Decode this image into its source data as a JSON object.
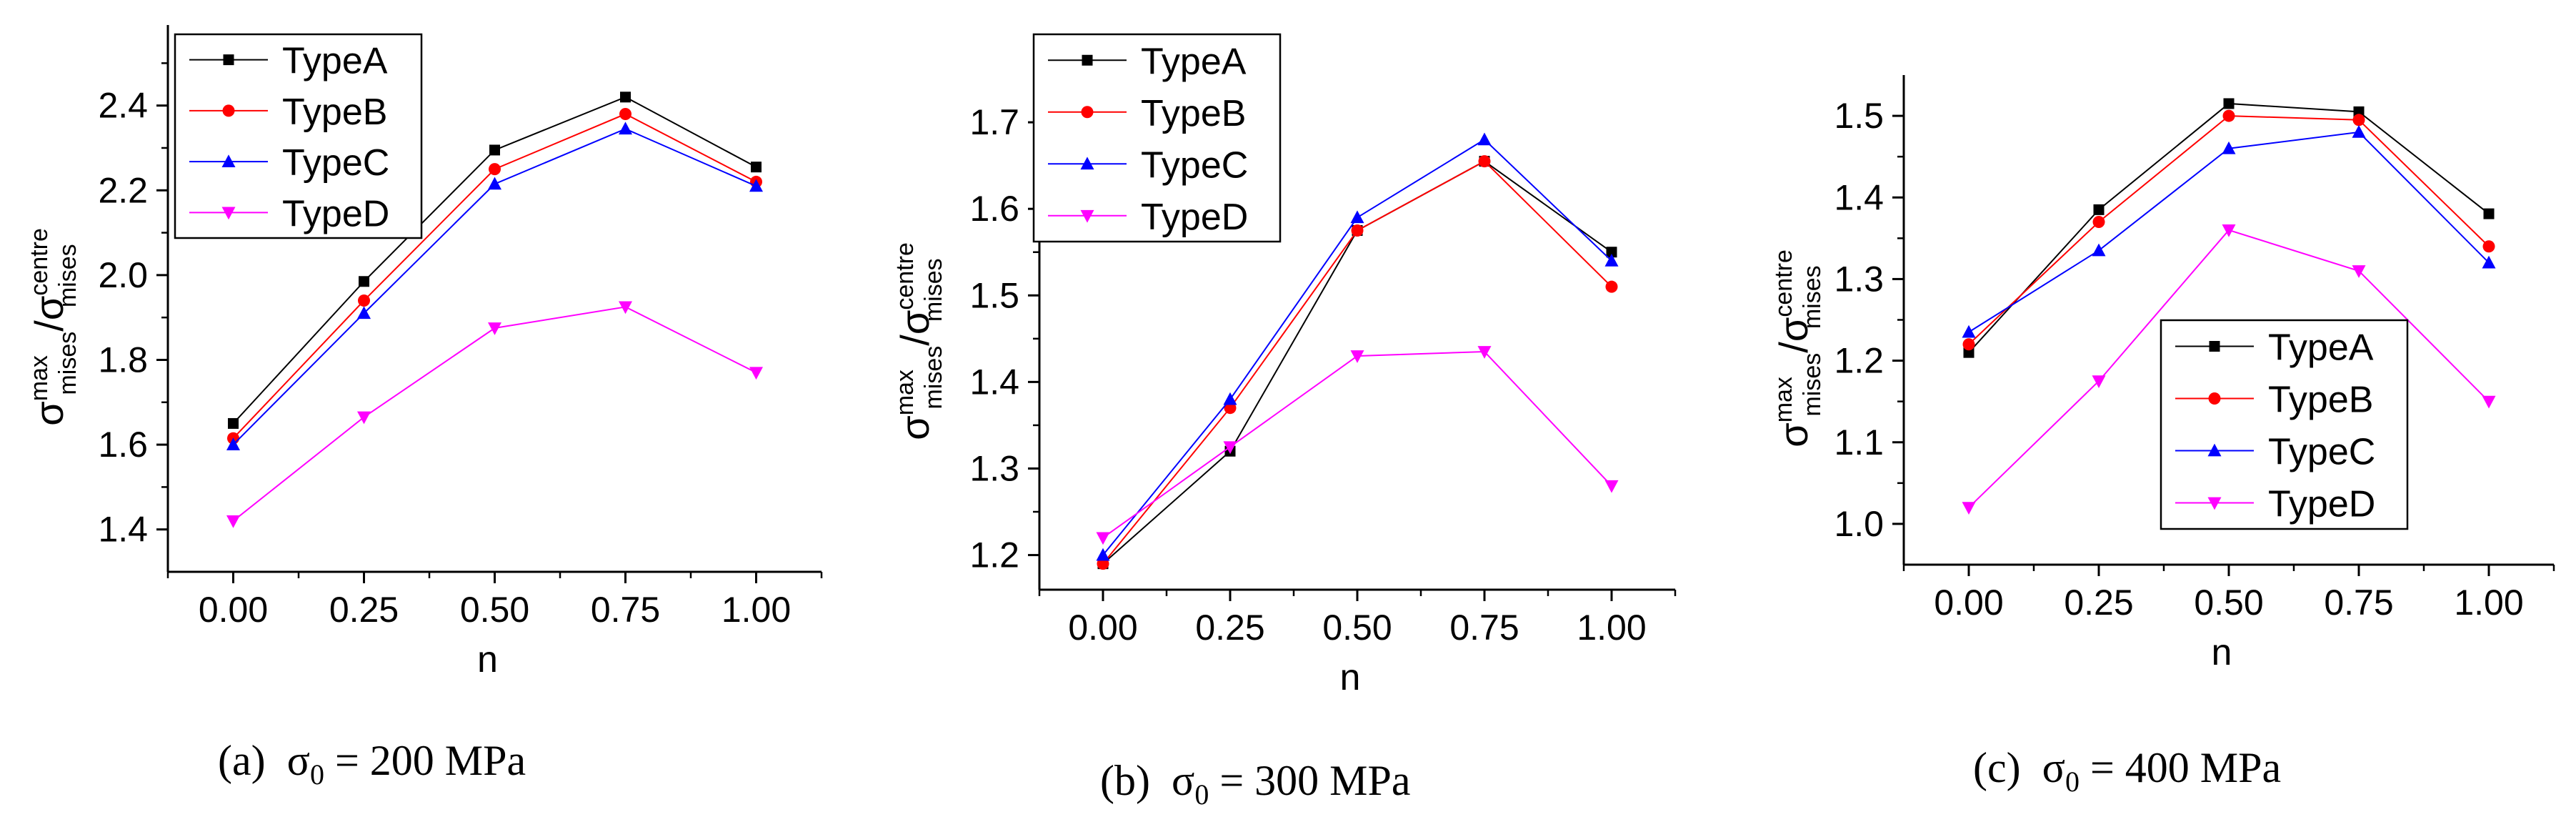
{
  "chart_data": [
    {
      "type": "line",
      "panel": "a",
      "caption": {
        "label": "(a)",
        "sigma": "σ",
        "sub": "0",
        "value": "= 200 MPa"
      },
      "xlabel": "n",
      "ylabel": {
        "base": "σ",
        "sup_num": "max",
        "sub_num": "mises",
        "sep": "/",
        "sup_den": "centre",
        "sub_den": "mises"
      },
      "x": [
        0.0,
        0.25,
        0.5,
        0.75,
        1.0
      ],
      "xticks": [
        "0.00",
        "0.25",
        "0.50",
        "0.75",
        "1.00"
      ],
      "xlim": [
        -0.125,
        1.125
      ],
      "ylim": [
        1.3,
        2.59
      ],
      "yticks": [
        1.4,
        1.6,
        1.8,
        2.0,
        2.2,
        2.4
      ],
      "ytick_labels": [
        "1.4",
        "1.6",
        "1.8",
        "2.0",
        "2.2",
        "2.4"
      ],
      "legend": "top-left",
      "series": [
        {
          "name": "TypeA",
          "color": "#000000",
          "marker": "square",
          "values": [
            1.65,
            1.985,
            2.295,
            2.42,
            2.255
          ]
        },
        {
          "name": "TypeB",
          "color": "#ff0000",
          "marker": "circle",
          "values": [
            1.615,
            1.94,
            2.25,
            2.38,
            2.22
          ]
        },
        {
          "name": "TypeC",
          "color": "#0000ff",
          "marker": "triangle-up",
          "values": [
            1.6,
            1.91,
            2.215,
            2.345,
            2.21
          ]
        },
        {
          "name": "TypeD",
          "color": "#ff00ff",
          "marker": "triangle-down",
          "values": [
            1.42,
            1.665,
            1.875,
            1.925,
            1.77
          ]
        }
      ]
    },
    {
      "type": "line",
      "panel": "b",
      "caption": {
        "label": "(b)",
        "sigma": "σ",
        "sub": "0",
        "value": "= 300 MPa"
      },
      "xlabel": "n",
      "ylabel": {
        "base": "σ",
        "sup_num": "max",
        "sub_num": "mises",
        "sep": "/",
        "sup_den": "centre",
        "sub_den": "mises"
      },
      "x": [
        0.0,
        0.25,
        0.5,
        0.75,
        1.0
      ],
      "xticks": [
        "0.00",
        "0.25",
        "0.50",
        "0.75",
        "1.00"
      ],
      "xlim": [
        -0.125,
        1.125
      ],
      "ylim": [
        1.16,
        1.8
      ],
      "yticks": [
        1.2,
        1.3,
        1.4,
        1.5,
        1.6,
        1.7
      ],
      "ytick_labels": [
        "1.2",
        "1.3",
        "1.4",
        "1.5",
        "1.6",
        "1.7"
      ],
      "legend": "top-left",
      "series": [
        {
          "name": "TypeA",
          "color": "#000000",
          "marker": "square",
          "values": [
            1.19,
            1.32,
            1.575,
            1.655,
            1.55
          ]
        },
        {
          "name": "TypeB",
          "color": "#ff0000",
          "marker": "circle",
          "values": [
            1.19,
            1.37,
            1.575,
            1.655,
            1.51
          ]
        },
        {
          "name": "TypeC",
          "color": "#0000ff",
          "marker": "triangle-up",
          "values": [
            1.2,
            1.38,
            1.59,
            1.68,
            1.54
          ]
        },
        {
          "name": "TypeD",
          "color": "#ff00ff",
          "marker": "triangle-down",
          "values": [
            1.22,
            1.325,
            1.43,
            1.435,
            1.28
          ]
        }
      ]
    },
    {
      "type": "line",
      "panel": "c",
      "caption": {
        "label": "(c)",
        "sigma": "σ",
        "sub": "0",
        "value": "= 400 MPa"
      },
      "xlabel": "n",
      "ylabel": {
        "base": "σ",
        "sup_num": "max",
        "sub_num": "mises",
        "sep": "/",
        "sup_den": "centre",
        "sub_den": "mises"
      },
      "x": [
        0.0,
        0.25,
        0.5,
        0.75,
        1.0
      ],
      "xticks": [
        "0.00",
        "0.25",
        "0.50",
        "0.75",
        "1.00"
      ],
      "xlim": [
        -0.125,
        1.125
      ],
      "ylim": [
        0.95,
        1.55
      ],
      "yticks": [
        1.0,
        1.1,
        1.2,
        1.3,
        1.4,
        1.5
      ],
      "ytick_labels": [
        "1.0",
        "1.1",
        "1.2",
        "1.3",
        "1.4",
        "1.5"
      ],
      "legend": "bottom-right",
      "series": [
        {
          "name": "TypeA",
          "color": "#000000",
          "marker": "square",
          "values": [
            1.21,
            1.385,
            1.515,
            1.505,
            1.38
          ]
        },
        {
          "name": "TypeB",
          "color": "#ff0000",
          "marker": "circle",
          "values": [
            1.22,
            1.37,
            1.5,
            1.495,
            1.34
          ]
        },
        {
          "name": "TypeC",
          "color": "#0000ff",
          "marker": "triangle-up",
          "values": [
            1.235,
            1.335,
            1.46,
            1.48,
            1.32
          ]
        },
        {
          "name": "TypeD",
          "color": "#ff00ff",
          "marker": "triangle-down",
          "values": [
            1.02,
            1.175,
            1.36,
            1.31,
            1.15
          ]
        }
      ]
    }
  ]
}
